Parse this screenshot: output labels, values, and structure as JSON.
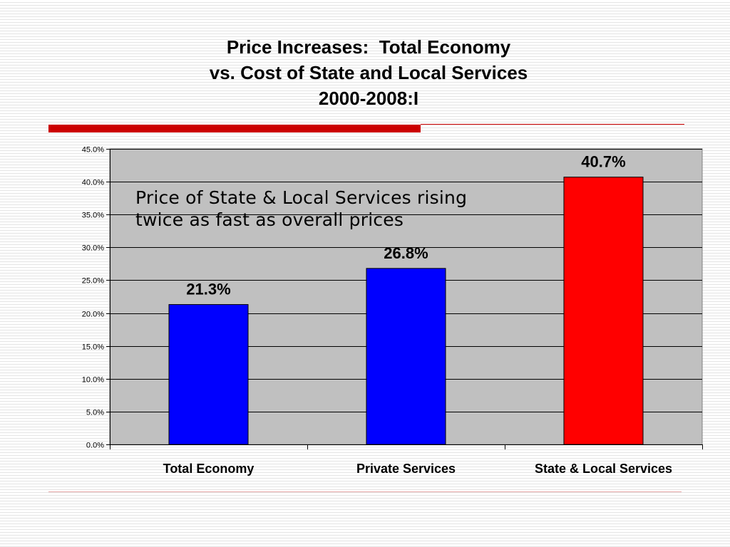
{
  "title_lines": [
    "Price Increases:  Total Economy",
    "vs. Cost of State and Local Services",
    "2000-2008:I"
  ],
  "annotation_lines": [
    "Price of State & Local Services rising",
    "twice as fast as overall prices"
  ],
  "colors": {
    "accent_rule": "#cc0000",
    "plot_background": "#c0c0c0"
  },
  "chart_data": {
    "type": "bar",
    "title": "Price Increases:  Total Economy vs. Cost of State and Local Services 2000-2008:I",
    "categories": [
      "Total Economy",
      "Private Services",
      "State & Local Services"
    ],
    "values": [
      21.3,
      26.8,
      40.7
    ],
    "value_labels": [
      "21.3%",
      "26.8%",
      "40.7%"
    ],
    "bar_colors": [
      "#0000ff",
      "#0000ff",
      "#ff0000"
    ],
    "ylim": [
      0,
      45
    ],
    "yticks": [
      0,
      5,
      10,
      15,
      20,
      25,
      30,
      35,
      40,
      45
    ],
    "ytick_labels": [
      "0.0%",
      "5.0%",
      "10.0%",
      "15.0%",
      "20.0%",
      "25.0%",
      "30.0%",
      "35.0%",
      "40.0%",
      "45.0%"
    ],
    "grid": true,
    "legend": "none",
    "annotation": "Price of State & Local Services rising twice as fast as overall prices"
  }
}
